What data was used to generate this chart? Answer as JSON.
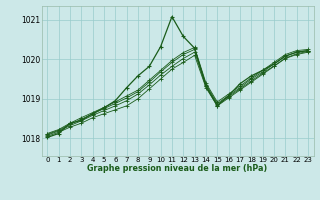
{
  "title": "Graphe pression niveau de la mer (hPa)",
  "bg_color": "#cce8e8",
  "grid_color": "#99cccc",
  "line_color": "#1a5c1a",
  "xlim": [
    -0.5,
    23.5
  ],
  "ylim": [
    1017.55,
    1021.35
  ],
  "xticks": [
    0,
    1,
    2,
    3,
    4,
    5,
    6,
    7,
    8,
    9,
    10,
    11,
    12,
    13,
    14,
    15,
    16,
    17,
    18,
    19,
    20,
    21,
    22,
    23
  ],
  "yticks": [
    1018,
    1019,
    1020,
    1021
  ],
  "series": [
    [
      1018.05,
      1018.15,
      1018.28,
      1018.38,
      1018.52,
      1018.62,
      1018.72,
      1018.82,
      1019.0,
      1019.25,
      1019.5,
      1019.75,
      1019.92,
      1020.1,
      1019.28,
      1018.82,
      1019.02,
      1019.22,
      1019.42,
      1019.62,
      1019.82,
      1020.02,
      1020.12,
      1020.18
    ],
    [
      1018.08,
      1018.18,
      1018.32,
      1018.44,
      1018.58,
      1018.7,
      1018.82,
      1018.95,
      1019.12,
      1019.35,
      1019.6,
      1019.82,
      1020.02,
      1020.18,
      1019.32,
      1018.85,
      1019.05,
      1019.25,
      1019.45,
      1019.65,
      1019.83,
      1020.03,
      1020.14,
      1020.2
    ],
    [
      1018.1,
      1018.2,
      1018.35,
      1018.48,
      1018.62,
      1018.75,
      1018.88,
      1019.02,
      1019.18,
      1019.42,
      1019.68,
      1019.92,
      1020.12,
      1020.25,
      1019.36,
      1018.88,
      1019.08,
      1019.28,
      1019.5,
      1019.68,
      1019.88,
      1020.08,
      1020.18,
      1020.22
    ],
    [
      1018.12,
      1018.22,
      1018.38,
      1018.52,
      1018.65,
      1018.78,
      1018.92,
      1019.07,
      1019.22,
      1019.47,
      1019.72,
      1019.97,
      1020.17,
      1020.3,
      1019.4,
      1018.92,
      1019.12,
      1019.32,
      1019.53,
      1019.72,
      1019.92,
      1020.12,
      1020.22,
      1020.25
    ]
  ],
  "main_series": [
    1018.02,
    1018.12,
    1018.38,
    1018.45,
    1018.62,
    1018.77,
    1018.95,
    1019.28,
    1019.58,
    1019.82,
    1020.32,
    1021.08,
    1020.58,
    1020.28,
    1019.32,
    1018.82,
    1019.08,
    1019.38,
    1019.58,
    1019.72,
    1019.88,
    1020.08,
    1020.18,
    1020.22
  ]
}
